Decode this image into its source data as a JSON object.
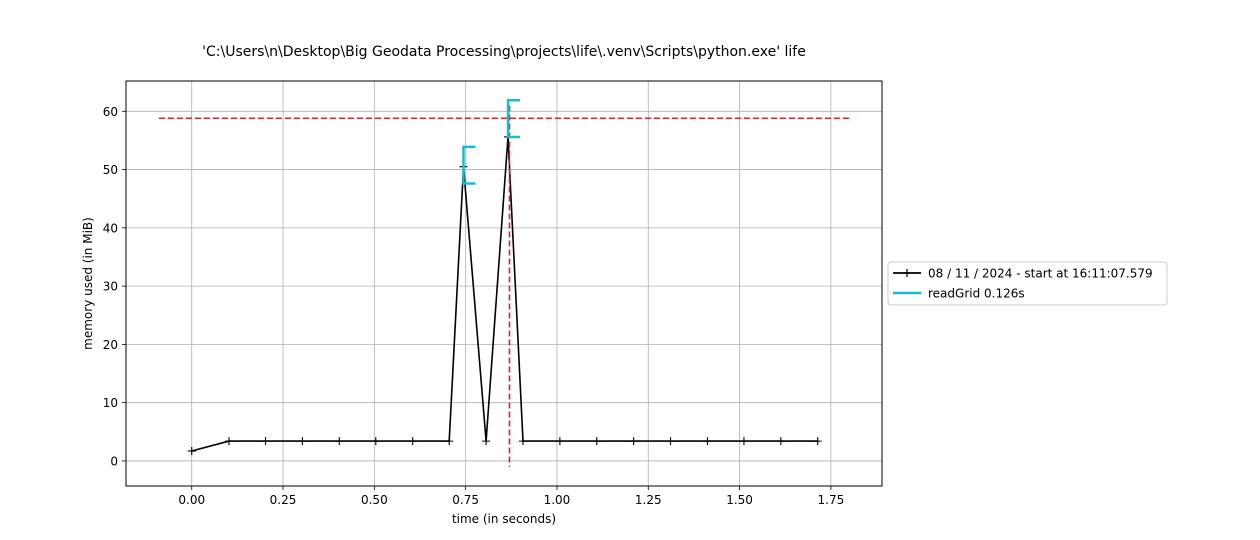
{
  "chart_data": {
    "type": "line",
    "title": "'C:\\Users\\n\\Desktop\\Big Geodata Processing\\projects\\life\\.venv\\Scripts\\python.exe' life",
    "xlabel": "time (in seconds)",
    "ylabel": "memory used (in MiB)",
    "xlim": [
      -0.18,
      1.89
    ],
    "ylim": [
      -4.3,
      65.2
    ],
    "xticks": [
      0.0,
      0.25,
      0.5,
      0.75,
      1.0,
      1.25,
      1.5,
      1.75
    ],
    "xtick_labels": [
      "0.00",
      "0.25",
      "0.50",
      "0.75",
      "1.00",
      "1.25",
      "1.50",
      "1.75"
    ],
    "yticks": [
      0,
      10,
      20,
      30,
      40,
      50,
      60
    ],
    "ytick_labels": [
      "0",
      "10",
      "20",
      "30",
      "40",
      "50",
      "60"
    ],
    "grid": true,
    "legend_position": "center-right-outside",
    "series": [
      {
        "name": "08 / 11 / 2024 - start at 16:11:07.579",
        "color": "#000000",
        "marker": "plus",
        "x": [
          0.0,
          0.102,
          0.202,
          0.303,
          0.404,
          0.504,
          0.605,
          0.705,
          0.744,
          0.806,
          0.866,
          0.907,
          1.008,
          1.109,
          1.21,
          1.311,
          1.412,
          1.512,
          1.613,
          1.714
        ],
        "y": [
          1.7,
          3.4,
          3.4,
          3.4,
          3.4,
          3.4,
          3.4,
          3.4,
          50.5,
          3.4,
          55.6,
          3.4,
          3.4,
          3.4,
          3.4,
          3.4,
          3.4,
          3.4,
          3.4,
          3.4
        ]
      }
    ],
    "function_brackets": {
      "name": "readGrid 0.126s",
      "color": "#17becf",
      "items": [
        {
          "x_start": 0.744,
          "y_low": 47.6,
          "y_high": 53.9
        },
        {
          "x_start": 0.866,
          "y_low": 55.6,
          "y_high": 61.9
        }
      ]
    },
    "max_markers": {
      "color": "#d62728",
      "hline_y": 58.8,
      "hline_x": [
        -0.09,
        1.8
      ],
      "vline_x": 0.87,
      "vline_y": [
        -1.0,
        61.0
      ]
    }
  }
}
